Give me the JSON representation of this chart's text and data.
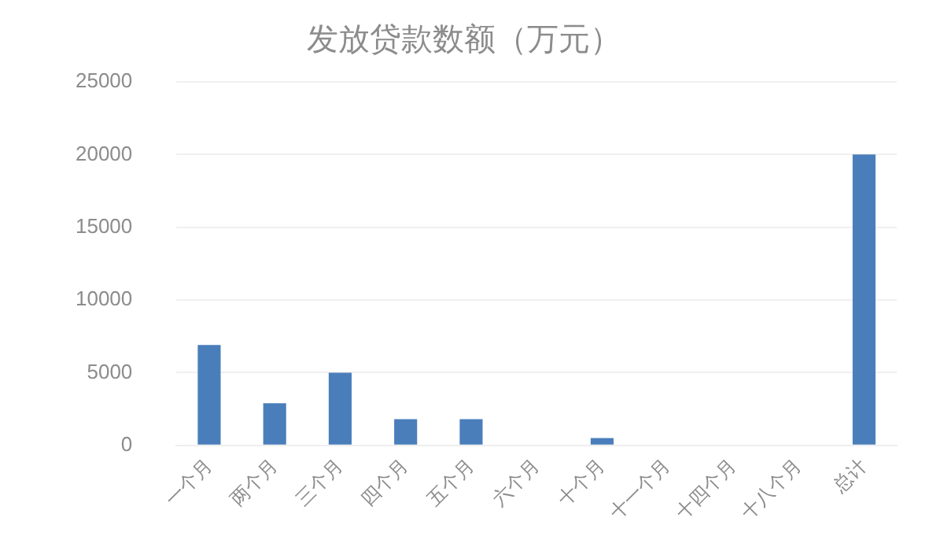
{
  "chart_data": {
    "type": "bar",
    "title": "发放贷款数额（万元）",
    "categories": [
      "一个月",
      "两个月",
      "三个月",
      "四个月",
      "五个月",
      "六个月",
      "十个月",
      "十一个月",
      "十四个月",
      "十八个月",
      "总计"
    ],
    "values": [
      6900,
      2900,
      5000,
      1800,
      1800,
      0,
      500,
      0,
      0,
      0,
      20000
    ],
    "color": "#4a7ebb",
    "ylim": [
      0,
      25000
    ],
    "yticks": [
      0,
      5000,
      10000,
      15000,
      20000,
      25000
    ],
    "grid": "y",
    "legend": false
  }
}
